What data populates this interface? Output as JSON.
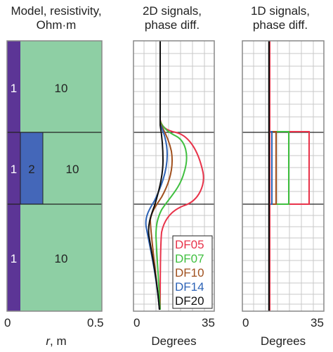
{
  "panel_titles": {
    "model_line1": "Model, resistivity,",
    "model_line2": "Ohm·m",
    "signals2d_line1": "2D signals,",
    "signals2d_line2": "phase diff.",
    "signals1d_line1": "1D signals,",
    "signals1d_line2": "phase diff."
  },
  "model": {
    "cells": {
      "top_thin": "1",
      "top_main": "10",
      "mid_thin": "1",
      "mid_block": "2",
      "mid_main": "10",
      "bot_thin": "1",
      "bot_main": "10"
    },
    "x_ticks": [
      "0",
      "0.5"
    ],
    "x_label_var": "r",
    "x_label_unit": ", m",
    "colors": {
      "thin": "#5c3596",
      "block": "#4467b9",
      "main": "#8ecfa4"
    }
  },
  "signals2d": {
    "x_ticks": [
      "0",
      "35"
    ],
    "x_label": "Degrees",
    "legend": [
      {
        "name": "DF05",
        "color": "#e8334a"
      },
      {
        "name": "DF07",
        "color": "#3fbf3f"
      },
      {
        "name": "DF10",
        "color": "#a0501e"
      },
      {
        "name": "DF14",
        "color": "#2d63b6"
      },
      {
        "name": "DF20",
        "color": "#111111"
      }
    ]
  },
  "signals1d": {
    "x_ticks": [
      "0",
      "35"
    ],
    "x_label": "Degrees",
    "colors": {
      "df05": "#e8334a",
      "df07": "#3fbf3f",
      "df10": "#a0501e",
      "df14": "#2d63b6",
      "df20": "#111111"
    }
  }
}
